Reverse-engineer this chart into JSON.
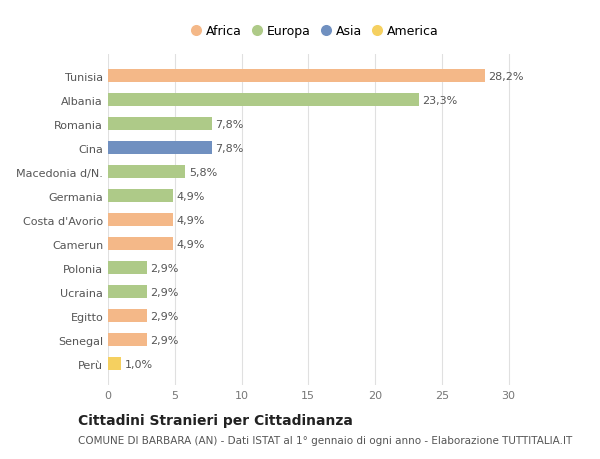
{
  "countries": [
    "Tunisia",
    "Albania",
    "Romania",
    "Cina",
    "Macedonia d/N.",
    "Germania",
    "Costa d'Avorio",
    "Camerun",
    "Polonia",
    "Ucraina",
    "Egitto",
    "Senegal",
    "Perù"
  ],
  "values": [
    28.2,
    23.3,
    7.8,
    7.8,
    5.8,
    4.9,
    4.9,
    4.9,
    2.9,
    2.9,
    2.9,
    2.9,
    1.0
  ],
  "labels": [
    "28,2%",
    "23,3%",
    "7,8%",
    "7,8%",
    "5,8%",
    "4,9%",
    "4,9%",
    "4,9%",
    "2,9%",
    "2,9%",
    "2,9%",
    "2,9%",
    "1,0%"
  ],
  "colors": [
    "#F4B888",
    "#AECA88",
    "#AECA88",
    "#7090C0",
    "#AECA88",
    "#AECA88",
    "#F4B888",
    "#F4B888",
    "#AECA88",
    "#AECA88",
    "#F4B888",
    "#F4B888",
    "#F5D060"
  ],
  "legend": [
    {
      "label": "Africa",
      "color": "#F4B888"
    },
    {
      "label": "Europa",
      "color": "#AECA88"
    },
    {
      "label": "Asia",
      "color": "#7090C0"
    },
    {
      "label": "America",
      "color": "#F5D060"
    }
  ],
  "title": "Cittadini Stranieri per Cittadinanza",
  "subtitle": "COMUNE DI BARBARA (AN) - Dati ISTAT al 1° gennaio di ogni anno - Elaborazione TUTTITALIA.IT",
  "xlim": [
    0,
    31
  ],
  "xticks": [
    0,
    5,
    10,
    15,
    20,
    25,
    30
  ],
  "background_color": "#ffffff",
  "grid_color": "#e0e0e0",
  "bar_height": 0.55,
  "label_fontsize": 8,
  "tick_fontsize": 8,
  "legend_fontsize": 9,
  "title_fontsize": 10,
  "subtitle_fontsize": 7.5
}
